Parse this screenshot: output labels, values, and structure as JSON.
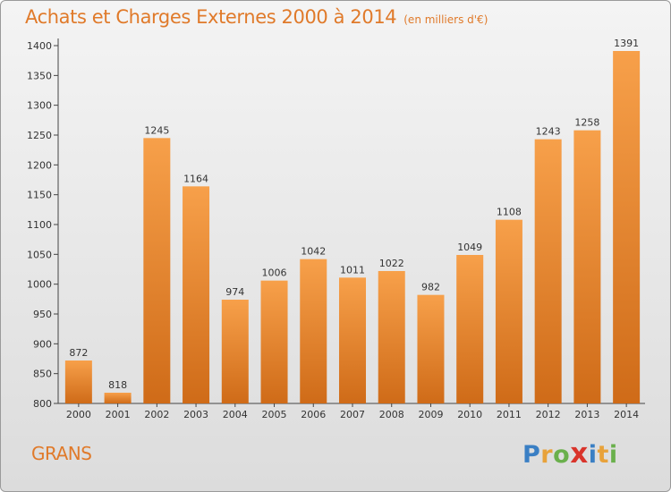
{
  "chart_data": {
    "type": "bar",
    "title": "Achats et Charges Externes 2000 à 2014",
    "subtitle": "(en milliers d'€)",
    "categories": [
      "2000",
      "2001",
      "2002",
      "2003",
      "2004",
      "2005",
      "2006",
      "2007",
      "2008",
      "2009",
      "2010",
      "2011",
      "2012",
      "2013",
      "2014"
    ],
    "values": [
      872,
      818,
      1245,
      1164,
      974,
      1006,
      1042,
      1011,
      1022,
      982,
      1049,
      1108,
      1243,
      1258,
      1391
    ],
    "value_labels": [
      "872",
      "818",
      "1245",
      "1164",
      "974",
      "1006",
      "1042",
      "1011",
      "1022",
      "982",
      "1049",
      "1108",
      "1243",
      "1258",
      "1391"
    ],
    "yticks": [
      800,
      850,
      900,
      950,
      1000,
      1050,
      1100,
      1150,
      1200,
      1250,
      1300,
      1350,
      1400
    ],
    "ytick_labels": [
      "800",
      "850",
      "900",
      "950",
      "1000",
      "1050",
      "1100",
      "1150",
      "1200",
      "1250",
      "1300",
      "1350",
      "1400"
    ],
    "ylim": [
      800,
      1400
    ],
    "grid": false,
    "bar_color": "#f08c32"
  },
  "location": "GRANS",
  "logo": {
    "letters": [
      "P",
      "r",
      "o",
      "x",
      "i",
      "t",
      "i"
    ],
    "colors": [
      "#3a7fc4",
      "#e8a23a",
      "#6ab04c",
      "#d9342b",
      "#3a7fc4",
      "#e8a23a",
      "#6ab04c"
    ]
  }
}
